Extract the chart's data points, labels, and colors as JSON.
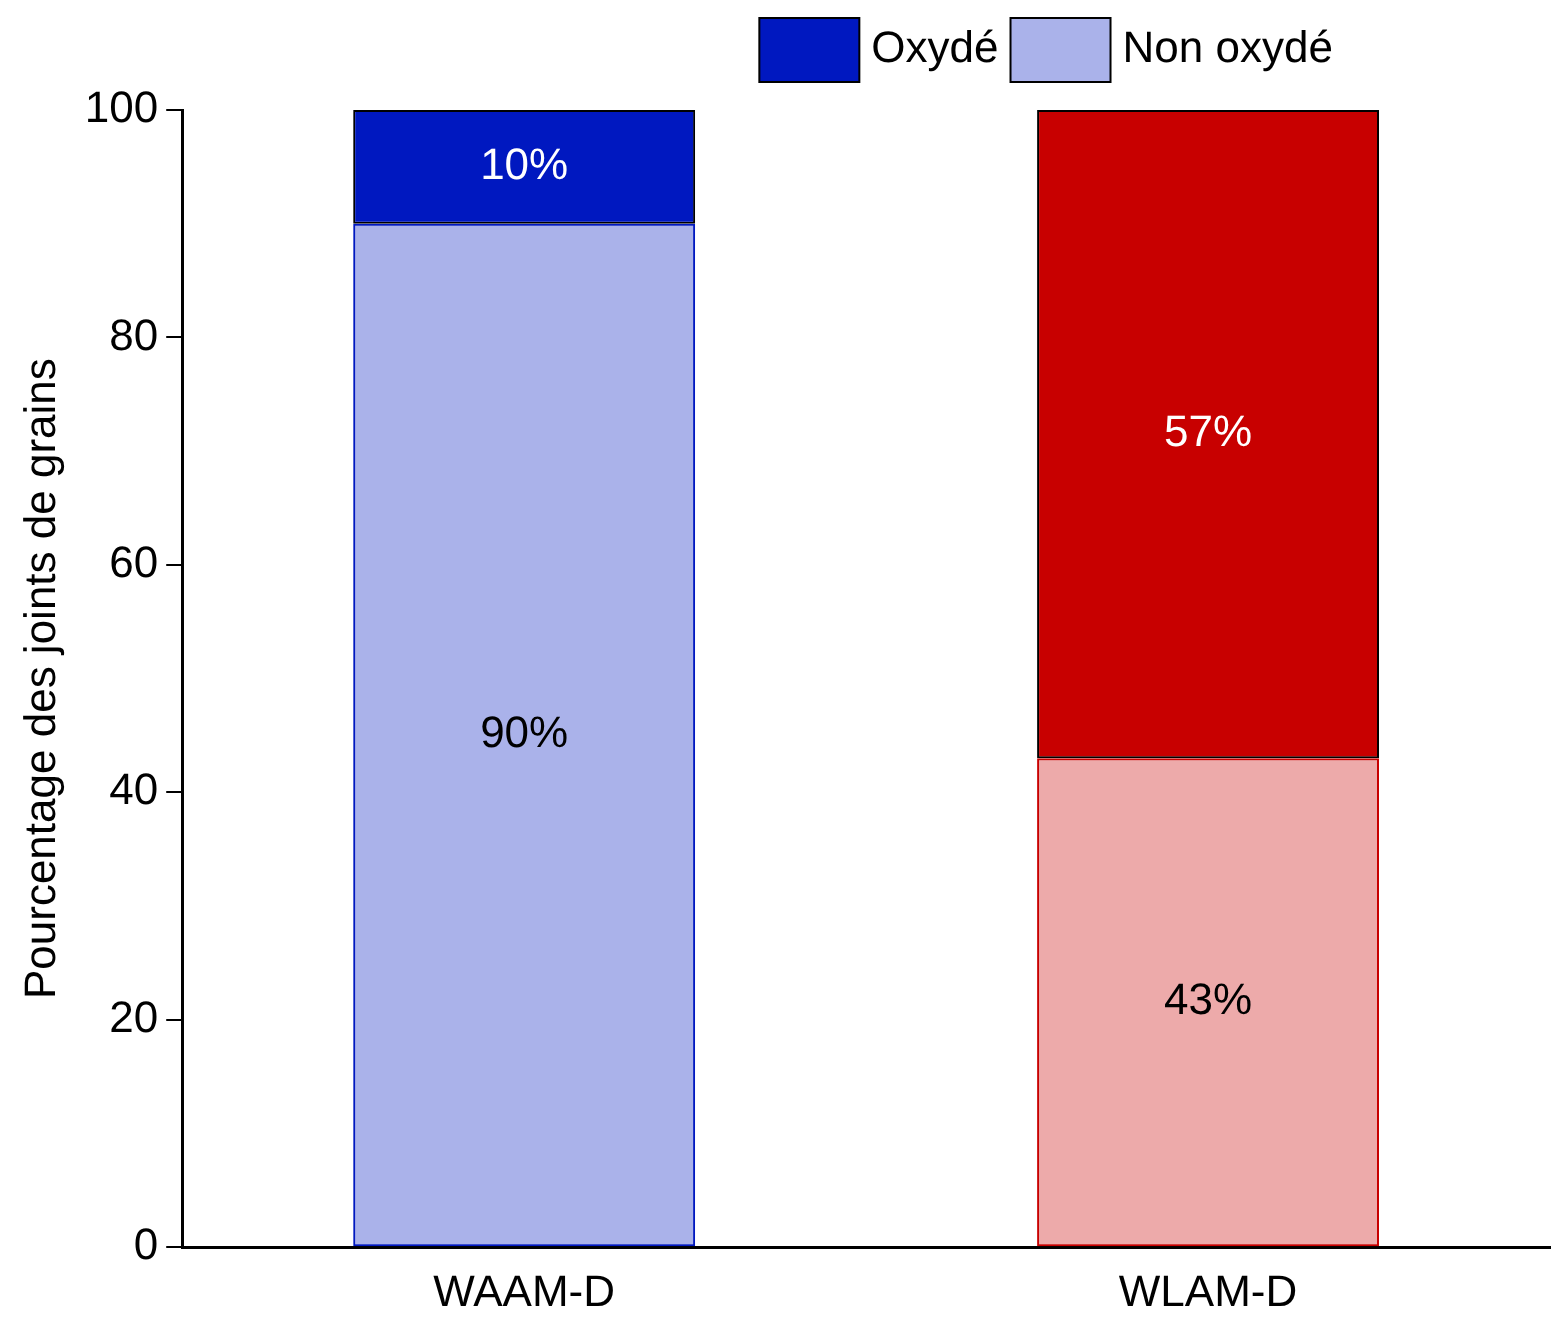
{
  "chart_data": {
    "type": "bar",
    "stacked": true,
    "ylabel": "Pourcentage des joints de grains",
    "categories": [
      "WAAM-D",
      "WLAM-D"
    ],
    "series": [
      {
        "name": "Non oxydé",
        "color": "#0018c0",
        "colors": [
          "#0018c0",
          "#c80000"
        ],
        "values": [
          90,
          43
        ],
        "value_labels": [
          "90%",
          "43%"
        ]
      },
      {
        "name": "Oxydé",
        "color": "#0018c0",
        "colors": [
          "#0018c0",
          "#c80000"
        ],
        "values": [
          10,
          57
        ],
        "value_labels": [
          "10%",
          "57%"
        ]
      }
    ],
    "ylim": [
      0,
      100
    ],
    "yticks": [
      0,
      20,
      40,
      60,
      80,
      100
    ],
    "grid": false,
    "legend": "top"
  }
}
